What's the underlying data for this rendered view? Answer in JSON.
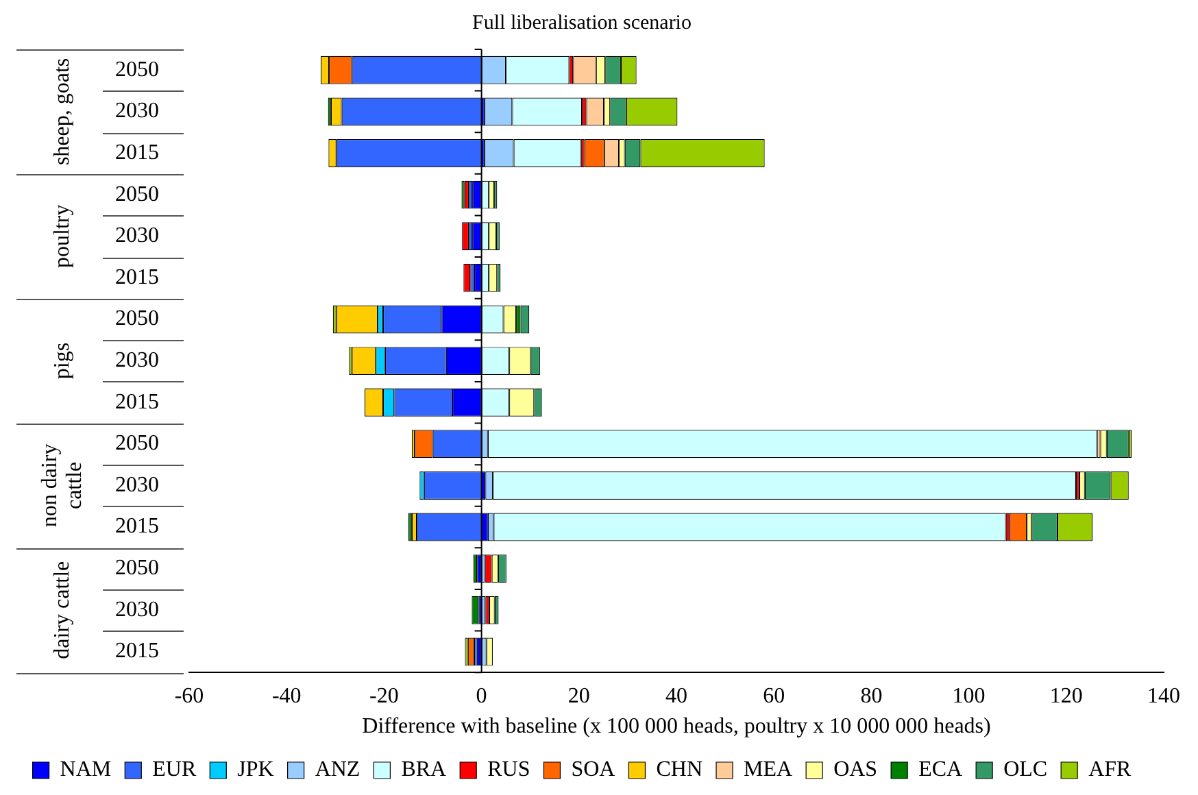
{
  "chart_data": {
    "type": "bar",
    "orientation": "horizontal",
    "stacked": true,
    "title": "Full liberalisation scenario",
    "xlabel": "Difference with baseline (x 100 000 heads, poultry x 10 000 000 heads)",
    "categories": [
      "2050",
      "2030",
      "2015",
      "2050",
      "2030",
      "2015",
      "2050",
      "2030",
      "2015",
      "2050",
      "2030",
      "2015",
      "2050",
      "2030",
      "2015"
    ],
    "annotations": [
      "sheep, goats",
      "poultry",
      "pigs",
      "non dairy cattle",
      "dairy cattle"
    ],
    "xlim": [
      -60,
      140
    ],
    "xticks": [
      -60,
      -40,
      -20,
      0,
      20,
      40,
      60,
      80,
      100,
      120,
      140
    ],
    "legend": "bottom",
    "ref_lines": [
      {
        "axis": "x",
        "value": 0,
        "color": "#000000"
      }
    ],
    "series": [
      {
        "name": "NAM",
        "color": "#0000ff",
        "values": [
          null,
          0.6,
          0.6,
          -1.9,
          -1.9,
          -1.5,
          -8.2,
          -7.3,
          -6.0,
          null,
          0.8,
          1.3,
          -0.9,
          -0.6,
          -0.8
        ]
      },
      {
        "name": "EUR",
        "color": "#3366ff",
        "values": [
          -26.6,
          -28.7,
          -29.8,
          -0.7,
          -0.7,
          -0.8,
          -12.0,
          -12.5,
          -11.9,
          -10.0,
          -11.8,
          -13.3,
          null,
          null,
          -0.7
        ]
      },
      {
        "name": "JPK",
        "color": "#00ccff",
        "values": [
          null,
          null,
          null,
          null,
          null,
          null,
          -1.1,
          -1.9,
          -2.3,
          null,
          -0.9,
          null,
          null,
          null,
          null
        ]
      },
      {
        "name": "ANZ",
        "color": "#99ccff",
        "values": [
          5.0,
          5.7,
          6.0,
          null,
          null,
          null,
          null,
          null,
          null,
          1.3,
          1.5,
          1.2,
          0.7,
          0.8,
          1.0
        ]
      },
      {
        "name": "BRA",
        "color": "#ccffff",
        "values": [
          13.0,
          14.3,
          13.8,
          1.5,
          1.5,
          1.5,
          4.5,
          5.7,
          5.7,
          125.0,
          119.7,
          105.1,
          null,
          null,
          null
        ]
      },
      {
        "name": "RUS",
        "color": "#ff0000",
        "values": [
          0.8,
          0.9,
          0.7,
          -0.9,
          -1.4,
          -1.4,
          null,
          null,
          null,
          null,
          0.7,
          0.8,
          1.4,
          0.8,
          null
        ]
      },
      {
        "name": "SOA",
        "color": "#ff6600",
        "values": [
          -4.7,
          null,
          4.1,
          null,
          null,
          null,
          null,
          null,
          null,
          -3.7,
          null,
          3.5,
          null,
          null,
          -1.3
        ]
      },
      {
        "name": "CHN",
        "color": "#ffcc00",
        "values": [
          -1.7,
          -2.2,
          -1.6,
          null,
          null,
          null,
          -8.5,
          -4.9,
          -3.8,
          -0.6,
          null,
          -1.0,
          null,
          null,
          null
        ]
      },
      {
        "name": "MEA",
        "color": "#ffcc99",
        "values": [
          4.7,
          3.6,
          3.0,
          null,
          null,
          null,
          null,
          null,
          null,
          0.7,
          null,
          null,
          null,
          null,
          null
        ]
      },
      {
        "name": "OAS",
        "color": "#ffff99",
        "values": [
          1.9,
          1.3,
          1.2,
          1.1,
          1.5,
          1.7,
          2.6,
          4.4,
          5.1,
          1.3,
          1.1,
          1.0,
          1.3,
          1.1,
          1.3
        ]
      },
      {
        "name": "ECA",
        "color": "#008000",
        "values": [
          null,
          -0.6,
          null,
          -0.6,
          null,
          null,
          0.9,
          null,
          null,
          null,
          null,
          -0.7,
          -0.8,
          -1.4,
          null
        ]
      },
      {
        "name": "OLC",
        "color": "#339966",
        "values": [
          3.2,
          3.3,
          3.2,
          0.6,
          0.7,
          0.7,
          1.8,
          1.9,
          1.6,
          4.5,
          5.3,
          5.3,
          1.7,
          0.8,
          null
        ]
      },
      {
        "name": "AFR",
        "color": "#99cc00",
        "values": [
          3.2,
          10.5,
          25.5,
          null,
          null,
          null,
          -0.7,
          -0.6,
          null,
          0.6,
          3.7,
          7.2,
          null,
          null,
          -0.6
        ]
      }
    ]
  }
}
